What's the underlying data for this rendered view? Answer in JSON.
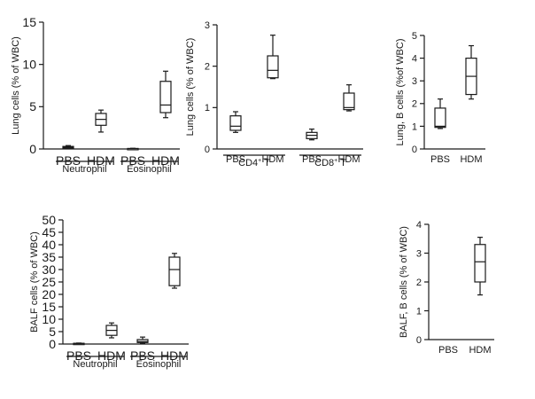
{
  "chart_data": [
    {
      "id": "lung-granulocytes",
      "type": "box",
      "ylabel": "Lung cells (% of WBC)",
      "yticks": [
        0,
        5,
        10,
        15
      ],
      "ylim": [
        0,
        15
      ],
      "boxes": [
        {
          "label": "PBS",
          "min": 0.05,
          "q1": 0.1,
          "median": 0.2,
          "q3": 0.3,
          "max": 0.4
        },
        {
          "label": "HDM",
          "min": 2.0,
          "q1": 2.8,
          "median": 3.5,
          "q3": 4.2,
          "max": 4.6
        },
        {
          "label": "PBS",
          "min": 0.0,
          "q1": 0.02,
          "median": 0.04,
          "q3": 0.06,
          "max": 0.08
        },
        {
          "label": "HDM",
          "min": 3.7,
          "q1": 4.3,
          "median": 5.2,
          "q3": 8.0,
          "max": 9.2
        }
      ],
      "groups": [
        {
          "label": "Neutrophil",
          "from": 0,
          "to": 1
        },
        {
          "label": "Eosinophil",
          "from": 2,
          "to": 3
        }
      ]
    },
    {
      "id": "lung-t-cells",
      "type": "box",
      "ylabel": "Lung cells (% of WBC)",
      "yticks": [
        0,
        1,
        2,
        3
      ],
      "ylim": [
        0,
        3
      ],
      "boxes": [
        {
          "label": "PBS",
          "min": 0.4,
          "q1": 0.45,
          "median": 0.55,
          "q3": 0.8,
          "max": 0.9
        },
        {
          "label": "HDM",
          "min": 1.7,
          "q1": 1.72,
          "median": 1.9,
          "q3": 2.25,
          "max": 2.75
        },
        {
          "label": "PBS",
          "min": 0.22,
          "q1": 0.25,
          "median": 0.33,
          "q3": 0.4,
          "max": 0.48
        },
        {
          "label": "HDM",
          "min": 0.92,
          "q1": 0.95,
          "median": 1.0,
          "q3": 1.35,
          "max": 1.55
        }
      ],
      "groups": [
        {
          "label": "CD4",
          "sup": "+",
          "suffix": " T",
          "from": 0,
          "to": 1
        },
        {
          "label": "CD8",
          "sup": "+",
          "suffix": " T",
          "from": 2,
          "to": 3
        }
      ]
    },
    {
      "id": "lung-b-cells",
      "type": "box",
      "ylabel": "Lung, B cells (%of WBC)",
      "yticks": [
        0,
        1,
        2,
        3,
        4,
        5
      ],
      "ylim": [
        0,
        5
      ],
      "boxes": [
        {
          "label": "PBS",
          "min": 0.9,
          "q1": 0.95,
          "median": 1.0,
          "q3": 1.8,
          "max": 2.2
        },
        {
          "label": "HDM",
          "min": 2.2,
          "q1": 2.4,
          "median": 3.2,
          "q3": 4.0,
          "max": 4.55
        }
      ],
      "groups": []
    },
    {
      "id": "balf-granulocytes",
      "type": "box",
      "ylabel": "BALF cells (% of WBC)",
      "yticks": [
        0,
        5,
        10,
        15,
        20,
        25,
        30,
        35,
        40,
        45,
        50
      ],
      "ylim": [
        0,
        50
      ],
      "boxes": [
        {
          "label": "PBS",
          "min": 0.0,
          "q1": 0.1,
          "median": 0.2,
          "q3": 0.3,
          "max": 0.4
        },
        {
          "label": "HDM",
          "min": 2.5,
          "q1": 3.5,
          "median": 5.5,
          "q3": 7.5,
          "max": 8.5
        },
        {
          "label": "PBS",
          "min": 0.3,
          "q1": 0.6,
          "median": 1.0,
          "q3": 1.8,
          "max": 2.8
        },
        {
          "label": "HDM",
          "min": 22.5,
          "q1": 23.5,
          "median": 30.0,
          "q3": 35.0,
          "max": 36.5
        }
      ],
      "groups": [
        {
          "label": "Neutrophil",
          "from": 0,
          "to": 1
        },
        {
          "label": "Eosinophil",
          "from": 2,
          "to": 3
        }
      ]
    },
    {
      "id": "balf-b-cells",
      "type": "box",
      "ylabel": "BALF, B cells (% of WBC)",
      "yticks": [
        0,
        1,
        2,
        3,
        4
      ],
      "ylim": [
        0,
        4
      ],
      "boxes": [
        {
          "label": "PBS",
          "min": 0.0,
          "q1": 0.0,
          "median": 0.0,
          "q3": 0.0,
          "max": 0.0,
          "empty": true
        },
        {
          "label": "HDM",
          "min": 1.55,
          "q1": 2.0,
          "median": 2.7,
          "q3": 3.3,
          "max": 3.55
        }
      ],
      "groups": []
    }
  ]
}
